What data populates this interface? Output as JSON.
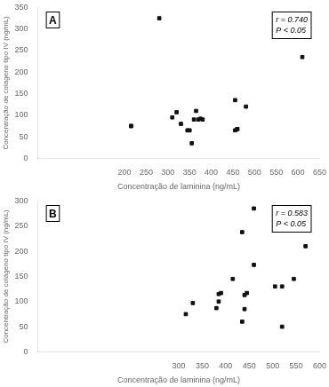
{
  "chart_data": [
    {
      "type": "scatter",
      "title": "A",
      "annotations": [
        "r = 0.740",
        "P < 0.05"
      ],
      "x": [
        215,
        215,
        280,
        310,
        320,
        330,
        345,
        350,
        355,
        360,
        365,
        370,
        375,
        380,
        455,
        455,
        460,
        460,
        480,
        610
      ],
      "values": [
        75,
        75,
        325,
        95,
        107,
        80,
        65,
        65,
        35,
        90,
        110,
        90,
        92,
        90,
        135,
        65,
        68,
        68,
        120,
        235
      ],
      "xlim": [
        0,
        650
      ],
      "ylim": [
        0,
        350
      ],
      "xticks": [
        200,
        250,
        300,
        350,
        400,
        450,
        500,
        550,
        600,
        650
      ],
      "yticks": [
        0,
        50,
        100,
        150,
        200,
        250,
        300,
        350
      ],
      "xlabel": "Concentração de laminina (ng/mL)",
      "ylabel": "Concentração de colágeno tipo IV (ng/mL)",
      "color": "#111111",
      "marker": "square",
      "grid": false
    },
    {
      "type": "scatter",
      "title": "B",
      "annotations": [
        "r = 0.583",
        "P < 0.05"
      ],
      "x": [
        315,
        330,
        380,
        385,
        385,
        390,
        415,
        435,
        435,
        440,
        440,
        445,
        460,
        460,
        505,
        520,
        520,
        545,
        570
      ],
      "values": [
        75,
        97,
        87,
        100,
        115,
        117,
        145,
        238,
        60,
        85,
        113,
        117,
        285,
        173,
        130,
        130,
        50,
        145,
        210
      ],
      "xlim": [
        0,
        600
      ],
      "ylim": [
        0,
        300
      ],
      "xticks": [
        300,
        350,
        400,
        450,
        500,
        550,
        600
      ],
      "yticks": [
        0,
        50,
        100,
        150,
        200,
        250,
        300
      ],
      "xlabel": "Concentração de laminina (ng/mL)",
      "ylabel": "Concentração de colágeno tipo IV (ng/mL)",
      "color": "#111111",
      "marker": "square",
      "grid": false
    }
  ]
}
